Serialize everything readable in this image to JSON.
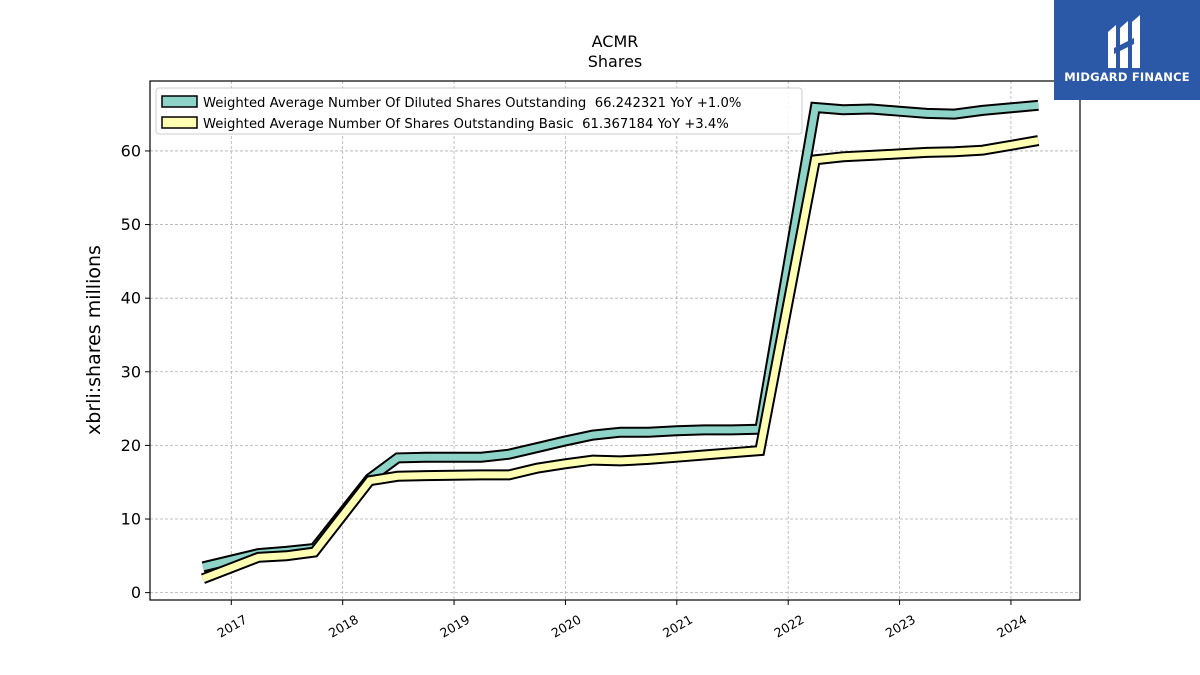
{
  "brand": {
    "name": "MIDGARD FINANCE",
    "logo_bg": "#2b59a8",
    "logo_fg": "#ffffff"
  },
  "chart_data": {
    "type": "line",
    "title": "ACMR",
    "subtitle": "Shares",
    "ylabel": "xbrli:shares millions",
    "xlabel": "",
    "ylim": [
      -1,
      69.5
    ],
    "xlim": [
      2016.27,
      2024.62
    ],
    "yticks": [
      0,
      10,
      20,
      30,
      40,
      50,
      60
    ],
    "xticks": [
      {
        "label": "2017",
        "value": 2017.0
      },
      {
        "label": "2018",
        "value": 2018.0
      },
      {
        "label": "2019",
        "value": 2019.0
      },
      {
        "label": "2020",
        "value": 2020.0
      },
      {
        "label": "2021",
        "value": 2021.0
      },
      {
        "label": "2022",
        "value": 2022.0
      },
      {
        "label": "2023",
        "value": 2023.0
      },
      {
        "label": "2024",
        "value": 2024.0
      }
    ],
    "grid": true,
    "legend_position": "top-left",
    "series": [
      {
        "name": "Weighted Average Number Of Diluted Shares Outstanding  66.242321 YoY +1.0%",
        "color": "#8dd3c7",
        "points": [
          [
            "2016-09-30",
            3.5
          ],
          [
            "2017-03-31",
            5.3
          ],
          [
            "2017-06-30",
            5.6
          ],
          [
            "2017-09-30",
            6.0
          ],
          [
            "2018-03-31",
            15.5
          ],
          [
            "2018-06-30",
            18.3
          ],
          [
            "2018-09-30",
            18.4
          ],
          [
            "2019-03-31",
            18.4
          ],
          [
            "2019-06-30",
            18.8
          ],
          [
            "2019-09-30",
            19.7
          ],
          [
            "2019-12-31",
            20.6
          ],
          [
            "2020-03-31",
            21.4
          ],
          [
            "2020-06-30",
            21.8
          ],
          [
            "2020-09-30",
            21.8
          ],
          [
            "2020-12-31",
            22.0
          ],
          [
            "2021-03-31",
            22.1
          ],
          [
            "2021-06-30",
            22.1
          ],
          [
            "2021-09-30",
            22.2
          ],
          [
            "2022-03-31",
            65.9
          ],
          [
            "2022-06-30",
            65.6
          ],
          [
            "2022-09-30",
            65.7
          ],
          [
            "2022-12-31",
            65.4
          ],
          [
            "2023-03-31",
            65.1
          ],
          [
            "2023-06-30",
            65.0
          ],
          [
            "2023-09-30",
            65.5
          ],
          [
            "2024-03-31",
            66.2
          ]
        ]
      },
      {
        "name": "Weighted Average Number Of Shares Outstanding Basic  61.367184 YoY +3.4%",
        "color": "#ffffb3",
        "points": [
          [
            "2016-09-30",
            1.9
          ],
          [
            "2017-03-31",
            4.8
          ],
          [
            "2017-06-30",
            5.0
          ],
          [
            "2017-09-30",
            5.5
          ],
          [
            "2018-03-31",
            15.2
          ],
          [
            "2018-06-30",
            15.8
          ],
          [
            "2018-09-30",
            15.9
          ],
          [
            "2019-03-31",
            16.0
          ],
          [
            "2019-06-30",
            16.0
          ],
          [
            "2019-09-30",
            16.9
          ],
          [
            "2019-12-31",
            17.5
          ],
          [
            "2020-03-31",
            18.0
          ],
          [
            "2020-06-30",
            17.9
          ],
          [
            "2020-09-30",
            18.1
          ],
          [
            "2020-12-31",
            18.4
          ],
          [
            "2021-03-31",
            18.7
          ],
          [
            "2021-06-30",
            19.0
          ],
          [
            "2021-09-30",
            19.3
          ],
          [
            "2022-03-31",
            58.8
          ],
          [
            "2022-06-30",
            59.2
          ],
          [
            "2022-09-30",
            59.4
          ],
          [
            "2022-12-31",
            59.6
          ],
          [
            "2023-03-31",
            59.8
          ],
          [
            "2023-06-30",
            59.9
          ],
          [
            "2023-09-30",
            60.1
          ],
          [
            "2024-03-31",
            61.4
          ]
        ]
      }
    ]
  }
}
